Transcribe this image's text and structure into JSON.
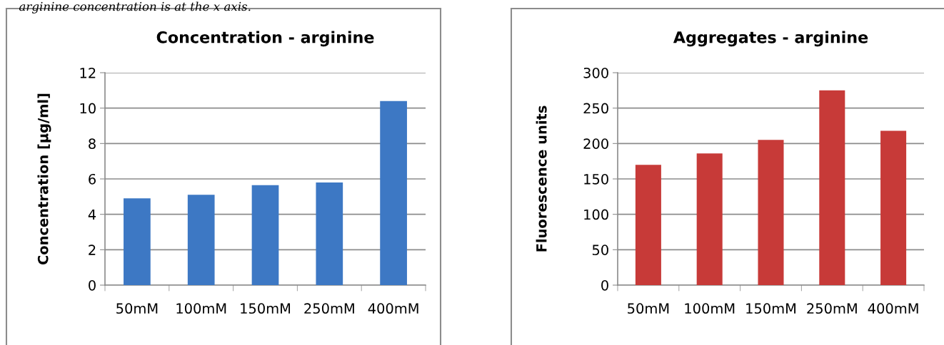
{
  "chart_data": [
    {
      "type": "bar",
      "title": "Concentration - arginine",
      "ylabel": "Concentration [µg/ml]",
      "annotations": [
        "arginine concentration is at the x axis."
      ],
      "categories": [
        "50mM",
        "100mM",
        "150mM",
        "250mM",
        "400mM"
      ],
      "values": [
        4.9,
        5.1,
        5.65,
        5.8,
        10.4
      ],
      "color": "#3d78c4",
      "ylim": [
        0,
        12
      ],
      "yticks": [
        0,
        2,
        4,
        6,
        8,
        10,
        12
      ],
      "grid": "y"
    },
    {
      "type": "bar",
      "title": "Aggregates - arginine",
      "ylabel": "Fluorescence units",
      "categories": [
        "50mM",
        "100mM",
        "150mM",
        "250mM",
        "400mM"
      ],
      "values": [
        170,
        186,
        205,
        275,
        218
      ],
      "color": "#c73a38",
      "ylim": [
        0,
        300
      ],
      "yticks": [
        0,
        50,
        100,
        150,
        200,
        250,
        300
      ],
      "grid": "y"
    }
  ]
}
